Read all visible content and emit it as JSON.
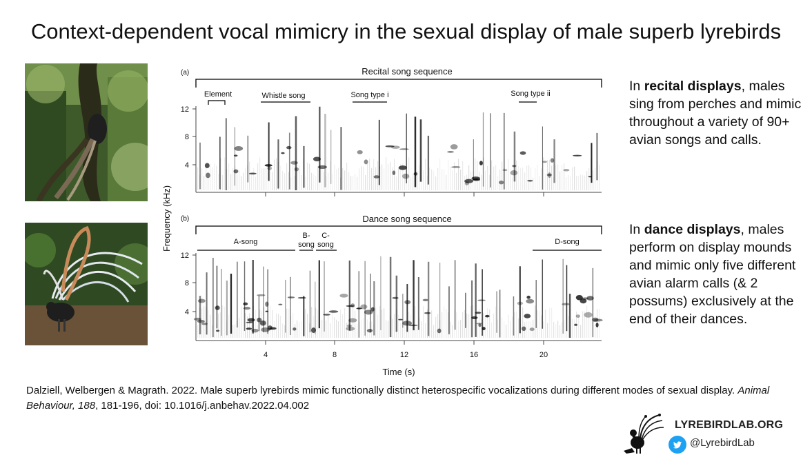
{
  "page": {
    "title": "Context-dependent vocal mimicry in the sexual display of male superb lyrebirds"
  },
  "photos": {
    "top_alt": "lyrebird-in-forest-photo",
    "bottom_alt": "lyrebird-dance-display-photo"
  },
  "figure": {
    "ylabel": "Frequency (kHz)",
    "xlabel": "Time (s)",
    "x_ticks": [
      "4",
      "8",
      "12",
      "16",
      "20"
    ],
    "y_ticks": [
      "12",
      "8",
      "4"
    ],
    "panel_a": {
      "label": "(a)",
      "title": "Recital song sequence",
      "segments": [
        "Element",
        "Whistle song",
        "Song type i",
        "Song type ii"
      ]
    },
    "panel_b": {
      "label": "(b)",
      "title": "Dance song sequence",
      "segments": [
        "A-song",
        "B-",
        "song",
        "C-",
        "song",
        "D-song"
      ]
    }
  },
  "recital": {
    "prefix": "In ",
    "bold": "recital displays",
    "suffix": ", males sing from perches and mimic throughout a variety of 90+ avian songs and calls."
  },
  "dance": {
    "prefix": "In ",
    "bold": "dance displays",
    "suffix": ", males perform on display mounds and mimic only five different avian alarm calls (& 2 possums) exclusively at the end of their dances."
  },
  "citation": {
    "authors": "Dalziell, Welbergen & Magrath. 2022. Male superb lyrebirds mimic functionally distinct heterospecific vocalizations during different modes of sexual display. ",
    "journal": "Animal Behaviour, 188",
    "details": ", 181-196, doi: 10.1016/j.anbehav.2022.04.002"
  },
  "brand": {
    "site": "LYREBIRDLAB.ORG",
    "handle": "@LyrebirdLab",
    "twitter_color": "#1DA1F2"
  }
}
